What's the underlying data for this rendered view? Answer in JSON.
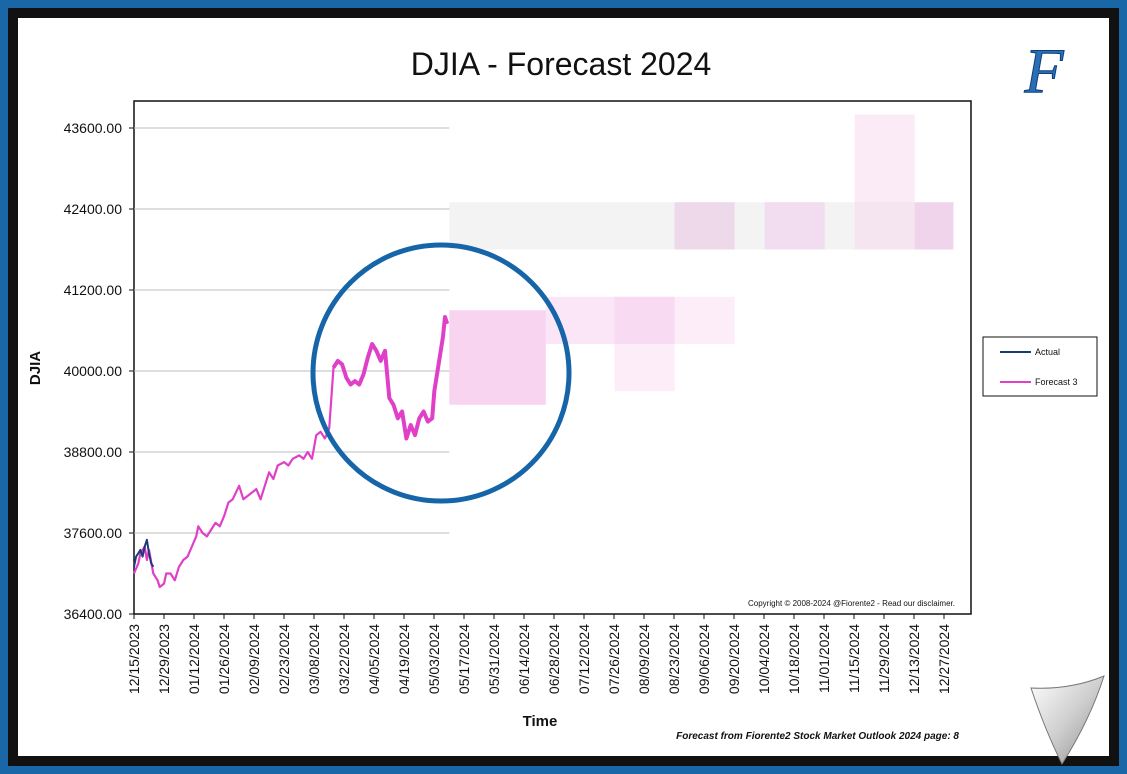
{
  "chart_data": {
    "type": "line",
    "title": "DJIA - Forecast 2024",
    "xlabel": "Time",
    "ylabel": "DJIA",
    "ylim": [
      36400,
      44000
    ],
    "yticks": [
      "43600.00",
      "42400.00",
      "41200.00",
      "40000.00",
      "38800.00",
      "37600.00",
      "36400.00"
    ],
    "xticks": [
      "12/15/2023",
      "12/29/2023",
      "01/12/2024",
      "01/26/2024",
      "02/09/2024",
      "02/23/2024",
      "03/08/2024",
      "03/22/2024",
      "04/05/2024",
      "04/19/2024",
      "05/03/2024",
      "05/17/2024",
      "05/31/2024",
      "06/14/2024",
      "06/28/2024",
      "07/12/2024",
      "07/26/2024",
      "08/09/2024",
      "08/23/2024",
      "09/06/2024",
      "09/20/2024",
      "10/04/2024",
      "10/18/2024",
      "11/01/2024",
      "11/15/2024",
      "11/29/2024",
      "12/13/2024",
      "12/27/2024"
    ],
    "xrange": [
      "2023-12-15",
      "2024-12-31"
    ],
    "grid": "horizontal, through 05/10/2024",
    "legend_position": "right",
    "series": [
      {
        "name": "Actual",
        "color": "#1f3a7a",
        "points": [
          [
            "2023-12-15",
            37100
          ],
          [
            "2023-12-16",
            37250
          ],
          [
            "2023-12-17",
            37300
          ],
          [
            "2023-12-18",
            37350
          ],
          [
            "2023-12-19",
            37250
          ],
          [
            "2023-12-20",
            37400
          ],
          [
            "2023-12-21",
            37500
          ],
          [
            "2023-12-22",
            37300
          ],
          [
            "2023-12-23",
            37150
          ],
          [
            "2023-12-24",
            37100
          ]
        ]
      },
      {
        "name": "Forecast 3",
        "color": "#e040c8",
        "points": [
          [
            "2023-12-15",
            37000
          ],
          [
            "2023-12-17",
            37150
          ],
          [
            "2023-12-18",
            37300
          ],
          [
            "2023-12-20",
            37400
          ],
          [
            "2023-12-21",
            37200
          ],
          [
            "2023-12-22",
            37350
          ],
          [
            "2023-12-24",
            37000
          ],
          [
            "2023-12-26",
            36900
          ],
          [
            "2023-12-27",
            36800
          ],
          [
            "2023-12-29",
            36850
          ],
          [
            "2023-12-30",
            37000
          ],
          [
            "2024-01-01",
            37000
          ],
          [
            "2024-01-03",
            36900
          ],
          [
            "2024-01-05",
            37100
          ],
          [
            "2024-01-07",
            37200
          ],
          [
            "2024-01-09",
            37250
          ],
          [
            "2024-01-11",
            37400
          ],
          [
            "2024-01-13",
            37550
          ],
          [
            "2024-01-14",
            37700
          ],
          [
            "2024-01-16",
            37600
          ],
          [
            "2024-01-18",
            37550
          ],
          [
            "2024-01-20",
            37650
          ],
          [
            "2024-01-22",
            37750
          ],
          [
            "2024-01-24",
            37700
          ],
          [
            "2024-01-26",
            37850
          ],
          [
            "2024-01-28",
            38050
          ],
          [
            "2024-01-30",
            38100
          ],
          [
            "2024-02-02",
            38300
          ],
          [
            "2024-02-04",
            38100
          ],
          [
            "2024-02-06",
            38150
          ],
          [
            "2024-02-08",
            38200
          ],
          [
            "2024-02-10",
            38250
          ],
          [
            "2024-02-12",
            38100
          ],
          [
            "2024-02-14",
            38300
          ],
          [
            "2024-02-16",
            38500
          ],
          [
            "2024-02-18",
            38400
          ],
          [
            "2024-02-20",
            38600
          ],
          [
            "2024-02-23",
            38650
          ],
          [
            "2024-02-25",
            38600
          ],
          [
            "2024-02-27",
            38700
          ],
          [
            "2024-03-01",
            38750
          ],
          [
            "2024-03-03",
            38700
          ],
          [
            "2024-03-05",
            38800
          ],
          [
            "2024-03-07",
            38700
          ],
          [
            "2024-03-09",
            39050
          ],
          [
            "2024-03-11",
            39100
          ],
          [
            "2024-03-13",
            39000
          ],
          [
            "2024-03-15",
            39150
          ],
          [
            "2024-03-17",
            40050
          ],
          [
            "2024-03-19",
            40150
          ],
          [
            "2024-03-21",
            40100
          ],
          [
            "2024-03-23",
            39900
          ],
          [
            "2024-03-25",
            39800
          ],
          [
            "2024-03-27",
            39850
          ],
          [
            "2024-03-29",
            39800
          ],
          [
            "2024-03-31",
            39950
          ],
          [
            "2024-04-02",
            40200
          ],
          [
            "2024-04-04",
            40400
          ],
          [
            "2024-04-06",
            40300
          ],
          [
            "2024-04-08",
            40150
          ],
          [
            "2024-04-10",
            40300
          ],
          [
            "2024-04-12",
            39600
          ],
          [
            "2024-04-14",
            39500
          ],
          [
            "2024-04-16",
            39300
          ],
          [
            "2024-04-18",
            39400
          ],
          [
            "2024-04-20",
            39000
          ],
          [
            "2024-04-22",
            39200
          ],
          [
            "2024-04-24",
            39050
          ],
          [
            "2024-04-26",
            39300
          ],
          [
            "2024-04-28",
            39400
          ],
          [
            "2024-04-30",
            39250
          ],
          [
            "2024-05-02",
            39300
          ],
          [
            "2024-05-03",
            39700
          ],
          [
            "2024-05-05",
            40100
          ],
          [
            "2024-05-07",
            40500
          ],
          [
            "2024-05-08",
            40800
          ],
          [
            "2024-05-09",
            40700
          ]
        ]
      }
    ],
    "forecast_bands": [
      {
        "start": "2024-05-10",
        "end": "2024-12-31",
        "low": 41800,
        "high": 42500,
        "color": "#f2f2f2",
        "opacity": 0.9
      },
      {
        "start": "2024-05-10",
        "end": "2024-06-24",
        "low": 39500,
        "high": 40900,
        "color": "#f4b8e8",
        "opacity": 0.6
      },
      {
        "start": "2024-06-24",
        "end": "2024-08-23",
        "low": 40400,
        "high": 41100,
        "color": "#f4b8e8",
        "opacity": 0.35
      },
      {
        "start": "2024-07-26",
        "end": "2024-08-23",
        "low": 39700,
        "high": 41100,
        "color": "#f4b8e8",
        "opacity": 0.25
      },
      {
        "start": "2024-08-23",
        "end": "2024-09-20",
        "low": 40400,
        "high": 41100,
        "color": "#f4b8e8",
        "opacity": 0.25
      },
      {
        "start": "2024-08-23",
        "end": "2024-09-20",
        "low": 41800,
        "high": 42500,
        "color": "#e8bfe0",
        "opacity": 0.5
      },
      {
        "start": "2024-10-04",
        "end": "2024-11-01",
        "low": 41800,
        "high": 42500,
        "color": "#f0c8ec",
        "opacity": 0.5
      },
      {
        "start": "2024-11-15",
        "end": "2024-12-13",
        "low": 41800,
        "high": 43800,
        "color": "#f6d8f0",
        "opacity": 0.5
      },
      {
        "start": "2024-12-13",
        "end": "2024-12-31",
        "low": 41800,
        "high": 42500,
        "color": "#ecc0e6",
        "opacity": 0.6
      }
    ],
    "annotations": [
      "Copyright © 2008-2024 @Fiorente2 -  Read our disclaimer."
    ]
  },
  "footer": "Forecast from Fiorente2 Stock Market Outlook 2024 page: 8",
  "logo_letter": "F"
}
